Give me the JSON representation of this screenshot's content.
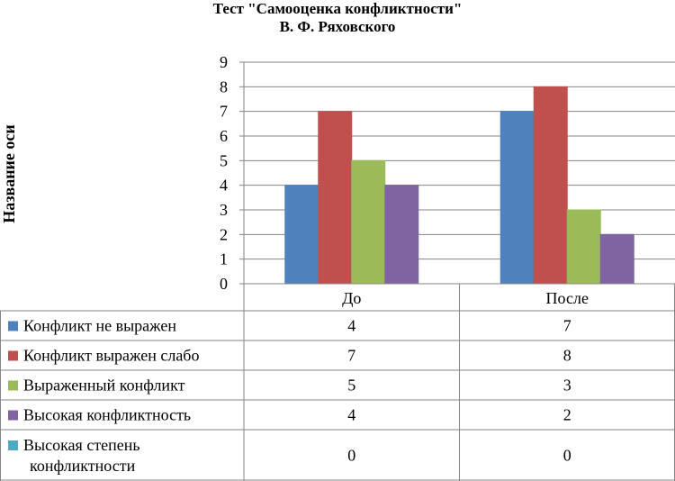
{
  "chart_data": {
    "type": "bar",
    "title_lines": [
      "Тест \"Самооценка конфликтности\"",
      "В. Ф. Ряховского"
    ],
    "ylabel": "Название оси",
    "xlabel": "",
    "ylim": [
      0,
      9
    ],
    "y_ticks": [
      "0",
      "1",
      "2",
      "3",
      "4",
      "5",
      "6",
      "7",
      "8",
      "9"
    ],
    "grid": true,
    "legend": "data-table",
    "categories": [
      "До",
      "После"
    ],
    "series": [
      {
        "name": "Конфликт не выражен",
        "name_lines": [
          "Конфликт не выражен"
        ],
        "color": "#4F81BD",
        "values": [
          4,
          7
        ]
      },
      {
        "name": "Конфликт выражен слабо",
        "name_lines": [
          "Конфликт выражен слабо"
        ],
        "color": "#C0504D",
        "values": [
          7,
          8
        ]
      },
      {
        "name": "Выраженный конфликт",
        "name_lines": [
          "Выраженный конфликт"
        ],
        "color": "#9BBB59",
        "values": [
          5,
          3
        ]
      },
      {
        "name": "Высокая конфликтность",
        "name_lines": [
          "Высокая конфликтность"
        ],
        "color": "#8064A2",
        "values": [
          4,
          2
        ]
      },
      {
        "name": "Высокая степень конфликтности",
        "name_lines": [
          "Высокая степень",
          "конфликтности"
        ],
        "color": "#4BACC6",
        "values": [
          0,
          0
        ]
      }
    ]
  }
}
